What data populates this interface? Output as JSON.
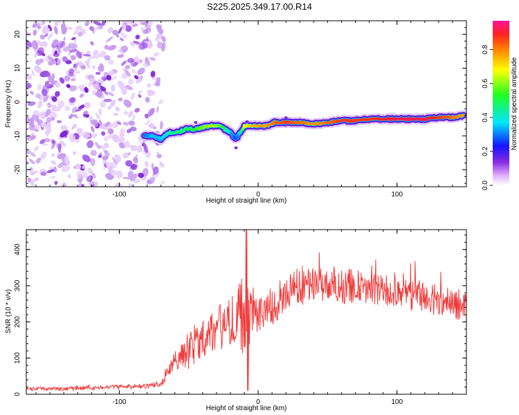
{
  "title": "S225.2025.349.17.00.R14",
  "chart_data": [
    {
      "type": "heatmap",
      "xlabel": "Height of straight line (km)",
      "ylabel": "Frequency (Hz)",
      "xlim": [
        -167,
        150
      ],
      "ylim": [
        -25,
        24
      ],
      "xticks": [
        -100,
        0,
        100
      ],
      "yticks": [
        -20,
        -10,
        0,
        10,
        20
      ],
      "noise_region_x": [
        -167,
        -70
      ],
      "ridge": {
        "x": [
          -82,
          -76,
          -70,
          -64,
          -58,
          -52,
          -46,
          -40,
          -34,
          -28,
          -24,
          -20,
          -16,
          -13,
          -10,
          -6,
          0,
          6,
          12,
          20,
          30,
          40,
          50,
          60,
          70,
          80,
          90,
          100,
          110,
          120,
          130,
          140,
          148
        ],
        "freq": [
          -10,
          -10,
          -11,
          -9,
          -9,
          -8,
          -8,
          -7.5,
          -7,
          -7,
          -8,
          -9,
          -11,
          -9,
          -7,
          -7,
          -7,
          -7,
          -6,
          -6,
          -6,
          -6.5,
          -6,
          -5.5,
          -5.5,
          -5,
          -5,
          -5,
          -5,
          -5,
          -4.5,
          -4.5,
          -4
        ],
        "amplitude": [
          0.3,
          0.35,
          0.35,
          0.45,
          0.5,
          0.5,
          0.55,
          0.6,
          0.65,
          0.6,
          0.5,
          0.35,
          0.25,
          0.4,
          0.7,
          0.75,
          0.8,
          0.8,
          0.85,
          0.9,
          0.85,
          0.8,
          0.85,
          0.9,
          0.9,
          0.9,
          0.92,
          0.95,
          0.95,
          0.95,
          0.9,
          0.85,
          0.8
        ]
      },
      "colorbar": {
        "label": "Normalized spectral amplitude",
        "range": [
          0,
          0.97
        ],
        "ticks": [
          0.0,
          0.2,
          0.4,
          0.6,
          0.8
        ],
        "tick_labels": [
          "0.0",
          "0.2",
          "0.4",
          "0.6",
          "0.8"
        ]
      }
    },
    {
      "type": "line",
      "xlabel": "Height of straight line (km)",
      "ylabel": "SNR (10 * v/v)",
      "xlim": [
        -167,
        150
      ],
      "ylim": [
        0,
        455
      ],
      "xticks": [
        -100,
        0,
        100
      ],
      "yticks": [
        0,
        100,
        200,
        300,
        400
      ],
      "series": [
        {
          "name": "SNR",
          "color": "#f03c3c",
          "x": [
            -167,
            -140,
            -120,
            -100,
            -80,
            -70,
            -65,
            -60,
            -55,
            -50,
            -45,
            -40,
            -35,
            -30,
            -25,
            -20,
            -15,
            -10,
            -8,
            -5,
            0,
            5,
            10,
            15,
            20,
            25,
            30,
            40,
            50,
            60,
            70,
            80,
            90,
            100,
            110,
            120,
            130,
            140,
            150
          ],
          "mean": [
            15,
            15,
            18,
            20,
            22,
            28,
            60,
            95,
            110,
            125,
            140,
            160,
            170,
            180,
            190,
            205,
            215,
            220,
            200,
            225,
            225,
            230,
            245,
            260,
            275,
            290,
            300,
            305,
            305,
            300,
            295,
            290,
            285,
            280,
            275,
            270,
            260,
            250,
            245
          ],
          "amp": [
            5,
            5,
            6,
            6,
            7,
            10,
            15,
            30,
            40,
            55,
            55,
            55,
            60,
            65,
            65,
            70,
            80,
            120,
            100,
            60,
            55,
            50,
            55,
            55,
            55,
            55,
            55,
            50,
            50,
            50,
            50,
            45,
            45,
            45,
            45,
            45,
            45,
            45,
            45
          ]
        }
      ]
    }
  ]
}
